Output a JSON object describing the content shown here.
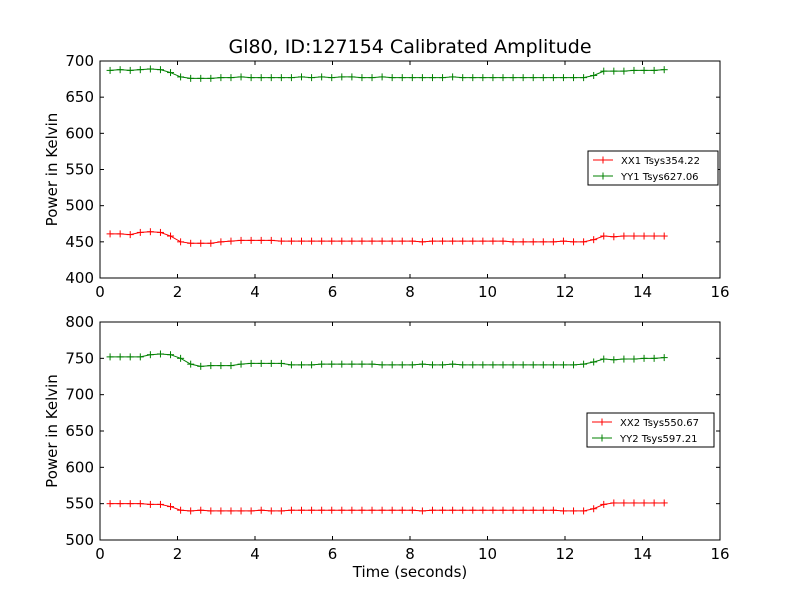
{
  "title": "Gl80, ID:127154 Calibrated Amplitude",
  "colors": {
    "xx": "#ff0000",
    "yy": "#008000",
    "axes": "#000000",
    "background": "#ffffff"
  },
  "chart_data": [
    {
      "type": "line",
      "ylabel": "Power in Kelvin",
      "xlabel": "",
      "xlim": [
        0,
        16
      ],
      "ylim": [
        400,
        700
      ],
      "xticks": [
        "0",
        "2",
        "4",
        "6",
        "8",
        "10",
        "12",
        "14",
        "16"
      ],
      "yticks": [
        "400",
        "450",
        "500",
        "550",
        "600",
        "650",
        "700"
      ],
      "grid": false,
      "legend_position": "right",
      "x": [
        0.26,
        0.52,
        0.78,
        1.04,
        1.3,
        1.56,
        1.82,
        2.08,
        2.34,
        2.6,
        2.86,
        3.12,
        3.38,
        3.64,
        3.9,
        4.16,
        4.42,
        4.68,
        4.94,
        5.2,
        5.46,
        5.72,
        5.98,
        6.24,
        6.5,
        6.76,
        7.02,
        7.28,
        7.54,
        7.8,
        8.06,
        8.32,
        8.58,
        8.84,
        9.1,
        9.36,
        9.62,
        9.88,
        10.14,
        10.4,
        10.66,
        10.92,
        11.18,
        11.44,
        11.7,
        11.96,
        12.22,
        12.48,
        12.74,
        13.0,
        13.26,
        13.52,
        13.78,
        14.04,
        14.3,
        14.56
      ],
      "series": [
        {
          "name": "XX1 Tsys354.22",
          "values": [
            461,
            461,
            460,
            463,
            464,
            463,
            458,
            450,
            448,
            448,
            448,
            450,
            451,
            452,
            452,
            452,
            452,
            451,
            451,
            451,
            451,
            451,
            451,
            451,
            451,
            451,
            451,
            451,
            451,
            451,
            451,
            450,
            451,
            451,
            451,
            451,
            451,
            451,
            451,
            451,
            450,
            450,
            450,
            450,
            450,
            451,
            450,
            450,
            453,
            458,
            457,
            458,
            458,
            458,
            458,
            458
          ]
        },
        {
          "name": "YY1 Tsys627.06",
          "values": [
            687,
            688,
            687,
            688,
            689,
            688,
            684,
            678,
            676,
            676,
            676,
            677,
            677,
            678,
            677,
            677,
            677,
            677,
            677,
            678,
            677,
            678,
            677,
            678,
            678,
            677,
            677,
            678,
            677,
            677,
            677,
            677,
            677,
            677,
            678,
            677,
            677,
            677,
            677,
            677,
            677,
            677,
            677,
            677,
            677,
            677,
            677,
            677,
            680,
            686,
            686,
            686,
            687,
            687,
            687,
            688
          ]
        }
      ]
    },
    {
      "type": "line",
      "ylabel": "Power in Kelvin",
      "xlabel": "Time (seconds)",
      "xlim": [
        0,
        16
      ],
      "ylim": [
        500,
        800
      ],
      "xticks": [
        "0",
        "2",
        "4",
        "6",
        "8",
        "10",
        "12",
        "14",
        "16"
      ],
      "yticks": [
        "500",
        "550",
        "600",
        "650",
        "700",
        "750",
        "800"
      ],
      "grid": false,
      "legend_position": "right",
      "x": [
        0.26,
        0.52,
        0.78,
        1.04,
        1.3,
        1.56,
        1.82,
        2.08,
        2.34,
        2.6,
        2.86,
        3.12,
        3.38,
        3.64,
        3.9,
        4.16,
        4.42,
        4.68,
        4.94,
        5.2,
        5.46,
        5.72,
        5.98,
        6.24,
        6.5,
        6.76,
        7.02,
        7.28,
        7.54,
        7.8,
        8.06,
        8.32,
        8.58,
        8.84,
        9.1,
        9.36,
        9.62,
        9.88,
        10.14,
        10.4,
        10.66,
        10.92,
        11.18,
        11.44,
        11.7,
        11.96,
        12.22,
        12.48,
        12.74,
        13.0,
        13.26,
        13.52,
        13.78,
        14.04,
        14.3,
        14.56
      ],
      "series": [
        {
          "name": "XX2 Tsys550.67",
          "values": [
            550,
            550,
            550,
            550,
            549,
            549,
            546,
            541,
            540,
            541,
            540,
            540,
            540,
            540,
            540,
            541,
            540,
            540,
            541,
            541,
            541,
            541,
            541,
            541,
            541,
            541,
            541,
            541,
            541,
            541,
            541,
            540,
            541,
            541,
            541,
            541,
            541,
            541,
            541,
            541,
            541,
            541,
            541,
            541,
            541,
            540,
            540,
            540,
            543,
            549,
            551,
            551,
            551,
            551,
            551,
            551
          ]
        },
        {
          "name": "YY2 Tsys597.21",
          "values": [
            752,
            752,
            752,
            752,
            755,
            756,
            755,
            750,
            742,
            739,
            740,
            740,
            740,
            742,
            743,
            743,
            743,
            743,
            741,
            741,
            741,
            742,
            742,
            742,
            742,
            742,
            742,
            741,
            741,
            741,
            741,
            742,
            741,
            741,
            742,
            741,
            741,
            741,
            741,
            741,
            741,
            741,
            741,
            741,
            741,
            741,
            741,
            742,
            745,
            749,
            748,
            749,
            749,
            750,
            750,
            751
          ]
        }
      ]
    }
  ]
}
